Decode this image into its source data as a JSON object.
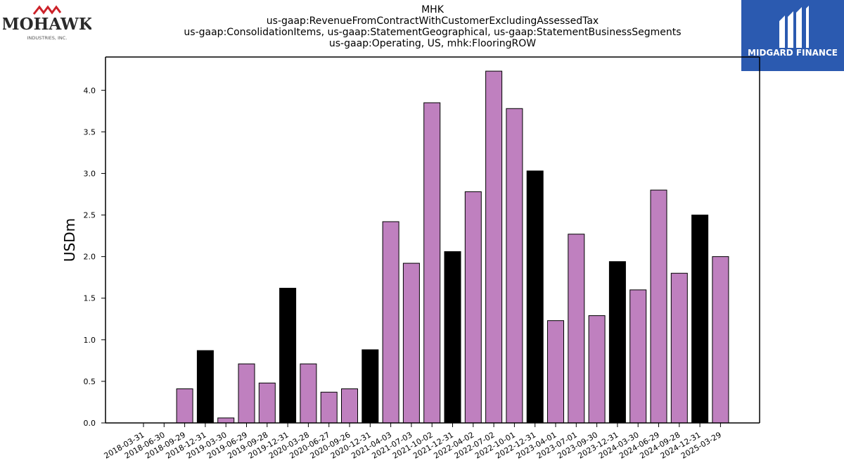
{
  "brand_left": {
    "name": "MOHAWK",
    "subtitle": "INDUSTRIES, INC.",
    "color": "#cc2229"
  },
  "brand_right": {
    "name": "MIDGARD FINANCE",
    "color": "#2b5ab0"
  },
  "chart_data": {
    "type": "bar",
    "title_lines": [
      "MHK",
      "us-gaap:RevenueFromContractWithCustomerExcludingAssessedTax",
      "us-gaap:ConsolidationItems, us-gaap:StatementGeographical, us-gaap:StatementBusinessSegments",
      "us-gaap:Operating, US, mhk:FlooringROW"
    ],
    "ylabel": "USDm",
    "ylim": [
      0,
      4.4
    ],
    "yticks": [
      "0.0",
      "0.5",
      "1.0",
      "1.5",
      "2.0",
      "2.5",
      "3.0",
      "3.5",
      "4.0"
    ],
    "categories": [
      "2018-03-31",
      "2018-06-30",
      "2018-09-29",
      "2018-12-31",
      "2019-03-30",
      "2019-06-29",
      "2019-09-28",
      "2019-12-31",
      "2020-03-28",
      "2020-06-27",
      "2020-09-26",
      "2020-12-31",
      "2021-04-03",
      "2021-07-03",
      "2021-10-02",
      "2021-12-31",
      "2022-04-02",
      "2022-07-02",
      "2022-10-01",
      "2022-12-31",
      "2023-04-01",
      "2023-07-01",
      "2023-09-30",
      "2023-12-31",
      "2024-03-30",
      "2024-06-29",
      "2024-09-28",
      "2024-12-31",
      "2025-03-29"
    ],
    "values": [
      0,
      0,
      0.41,
      0.87,
      0.06,
      0.71,
      0.48,
      1.62,
      0.71,
      0.37,
      0.41,
      0.88,
      2.42,
      1.92,
      3.85,
      2.06,
      2.78,
      4.23,
      3.78,
      3.03,
      1.23,
      2.27,
      1.29,
      1.94,
      1.6,
      2.8,
      1.8,
      2.5,
      2.0
    ],
    "colors": {
      "quarter": "#bf80bf",
      "year_end": "#000000",
      "edge": "#000000"
    },
    "grid": false
  }
}
